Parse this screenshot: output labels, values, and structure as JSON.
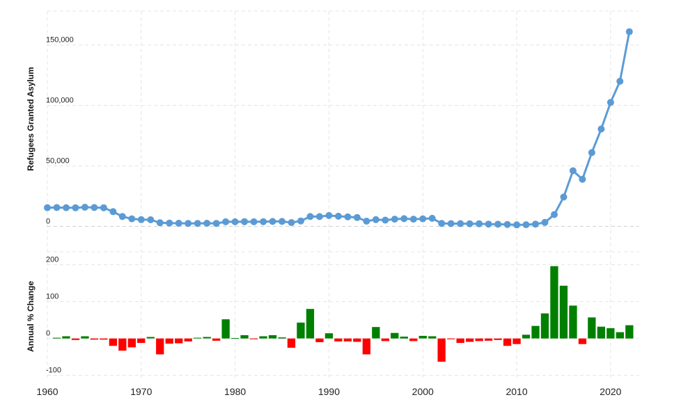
{
  "chart_data": [
    {
      "type": "line",
      "ylabel": "Refugees Granted Asylum",
      "ylim": [
        -2000,
        178000
      ],
      "y_ticks": [
        0,
        50000,
        100000,
        150000
      ],
      "y_tick_labels": [
        "0",
        "50,000",
        "100,000",
        "150,000"
      ],
      "grid": true,
      "color": "#5b9bd5",
      "series": [
        {
          "x": [
            1960,
            1961,
            1962,
            1963,
            1964,
            1965,
            1966,
            1967,
            1968,
            1969,
            1970,
            1971,
            1972,
            1973,
            1974,
            1975,
            1976,
            1977,
            1978,
            1979,
            1980,
            1981,
            1982,
            1983,
            1984,
            1985,
            1986,
            1987,
            1988,
            1989,
            1990,
            1991,
            1992,
            1993,
            1994,
            1995,
            1996,
            1997,
            1998,
            1999,
            2000,
            2001,
            2002,
            2003,
            2004,
            2005,
            2006,
            2007,
            2008,
            2009,
            2010,
            2011,
            2012,
            2013,
            2014,
            2015,
            2016,
            2017,
            2018,
            2019,
            2020,
            2021,
            2022
          ],
          "values": [
            15500,
            15600,
            15500,
            15400,
            15800,
            15600,
            15400,
            12200,
            8200,
            6300,
            5600,
            5500,
            3000,
            2800,
            2600,
            2500,
            2500,
            2600,
            2500,
            3800,
            3800,
            3900,
            3800,
            3900,
            4100,
            4100,
            3200,
            4500,
            8200,
            8100,
            9000,
            8400,
            7900,
            7400,
            4300,
            5600,
            5200,
            6000,
            6400,
            6000,
            6300,
            6700,
            2500,
            2300,
            2300,
            2200,
            2200,
            1900,
            1800,
            1600,
            1300,
            1400,
            1900,
            3300,
            9800,
            24300,
            46000,
            39000,
            61000,
            80500,
            102500,
            120000,
            161000
          ]
        }
      ]
    },
    {
      "type": "bar",
      "ylabel": "Annual % Change",
      "ylim": [
        -110,
        235
      ],
      "y_ticks": [
        -100,
        0,
        100,
        200
      ],
      "y_tick_labels": [
        "-100",
        "0",
        "100",
        "200"
      ],
      "grid": true,
      "positive_color": "#008000",
      "negative_color": "#ff0000",
      "x": [
        1961,
        1962,
        1963,
        1964,
        1965,
        1966,
        1967,
        1968,
        1969,
        1970,
        1971,
        1972,
        1973,
        1974,
        1975,
        1976,
        1977,
        1978,
        1979,
        1980,
        1981,
        1982,
        1983,
        1984,
        1985,
        1986,
        1987,
        1988,
        1989,
        1990,
        1991,
        1992,
        1993,
        1994,
        1995,
        1996,
        1997,
        1998,
        1999,
        2000,
        2001,
        2002,
        2003,
        2004,
        2005,
        2006,
        2007,
        2008,
        2009,
        2010,
        2011,
        2012,
        2013,
        2014,
        2015,
        2016,
        2017,
        2018,
        2019,
        2020,
        2021,
        2022
      ],
      "values": [
        2,
        6,
        -4,
        6,
        -3,
        -3,
        -20,
        -33,
        -24,
        -12,
        4,
        -43,
        -14,
        -13,
        -8,
        2,
        4,
        -6,
        52,
        1,
        9,
        -2,
        6,
        9,
        3,
        -25,
        43,
        80,
        -10,
        14,
        -8,
        -8,
        -9,
        -43,
        31,
        -7,
        15,
        5,
        -7,
        7,
        6,
        -63,
        -2,
        -12,
        -9,
        -7,
        -6,
        -4,
        -20,
        -15,
        10,
        34,
        68,
        196,
        143,
        89,
        -15,
        57,
        32,
        28,
        17,
        36
      ]
    }
  ],
  "x_axis": {
    "ticks": [
      1960,
      1970,
      1980,
      1990,
      2000,
      2010,
      2020
    ],
    "tick_labels": [
      "1960",
      "1970",
      "1980",
      "1990",
      "2000",
      "2010",
      "2020"
    ]
  }
}
